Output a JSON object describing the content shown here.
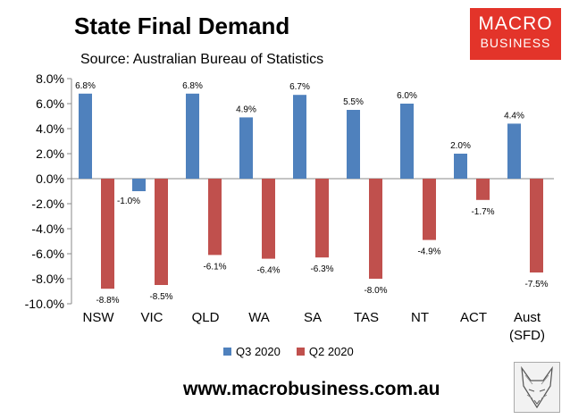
{
  "header": {
    "title": "State Final Demand",
    "source": "Source: Australian Bureau of Statistics"
  },
  "logo": {
    "line1": "MACRO",
    "line2": "BUSINESS"
  },
  "footer": {
    "website": "www.macrobusiness.com.au"
  },
  "colors": {
    "q3": "#4f81bd",
    "q2": "#c0504d",
    "logo_bg": "#e3342a"
  },
  "chart_data": {
    "type": "bar",
    "categories": [
      "NSW",
      "VIC",
      "QLD",
      "WA",
      "SA",
      "TAS",
      "NT",
      "ACT",
      "Aust|(SFD)"
    ],
    "series": [
      {
        "name": "Q3 2020",
        "values": [
          6.8,
          -1.0,
          6.8,
          4.9,
          6.7,
          5.5,
          6.0,
          2.0,
          4.4
        ],
        "labels": [
          "6.8%",
          "-1.0%",
          "6.8%",
          "4.9%",
          "6.7%",
          "5.5%",
          "6.0%",
          "2.0%",
          "4.4%"
        ]
      },
      {
        "name": "Q2 2020",
        "values": [
          -8.8,
          -8.5,
          -6.1,
          -6.4,
          -6.3,
          -8.0,
          -4.9,
          -1.7,
          -7.5
        ],
        "labels": [
          "-8.8%",
          "-8.5%",
          "-6.1%",
          "-6.4%",
          "-6.3%",
          "-8.0%",
          "-4.9%",
          "-1.7%",
          "-7.5%"
        ]
      }
    ],
    "ylim": [
      -10,
      8
    ],
    "yticks": [
      "8.0%",
      "6.0%",
      "4.0%",
      "2.0%",
      "0.0%",
      "-2.0%",
      "-4.0%",
      "-6.0%",
      "-8.0%",
      "-10.0%"
    ],
    "ytick_values": [
      8,
      6,
      4,
      2,
      0,
      -2,
      -4,
      -6,
      -8,
      -10
    ],
    "grid": false,
    "legend_position": "bottom"
  }
}
